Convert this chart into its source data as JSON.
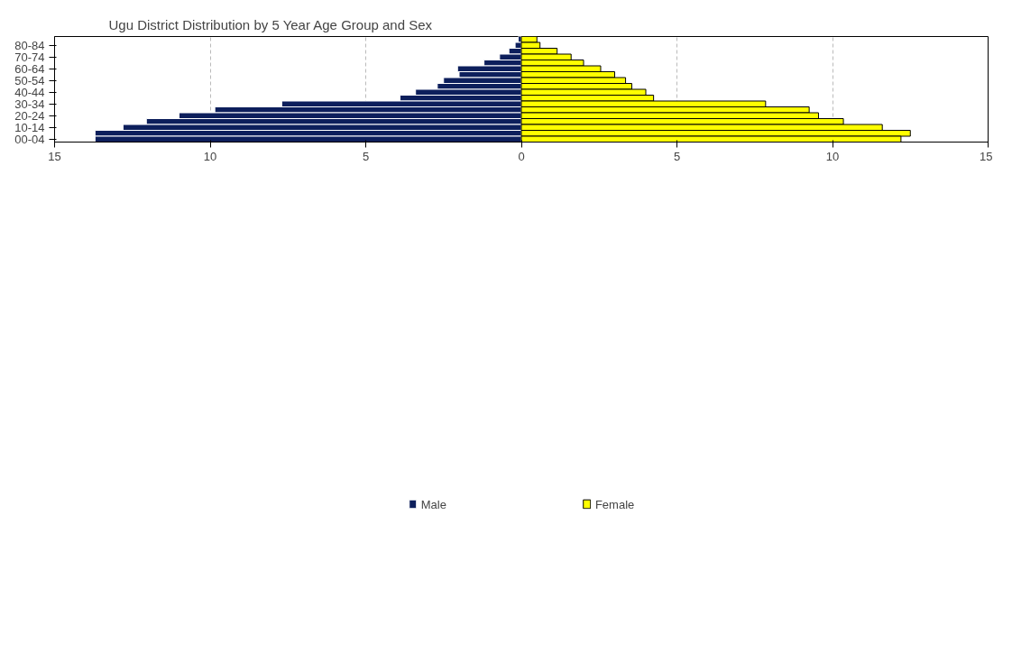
{
  "chart_data": {
    "type": "bar",
    "orientation": "horizontal",
    "title": "Ugu District Distribution by 5 Year Age Group and Sex",
    "categories": [
      null,
      "80-84",
      null,
      "70-74",
      null,
      "60-64",
      null,
      "50-54",
      null,
      "40-44",
      null,
      "30-34",
      null,
      "20-24",
      null,
      "10-14",
      null,
      "00-04"
    ],
    "series": [
      {
        "name": "Male",
        "color": "#0d1f5c",
        "values": [
          -0.1,
          -0.2,
          -0.4,
          -0.7,
          -1.2,
          -2.05,
          -2.0,
          -2.5,
          -2.7,
          -3.4,
          -3.9,
          -7.7,
          -9.85,
          -11.0,
          -12.05,
          -12.8,
          -13.7,
          -13.7
        ]
      },
      {
        "name": "Female",
        "color": "#ffff00",
        "values": [
          0.5,
          0.6,
          1.15,
          1.6,
          2.0,
          2.55,
          3.0,
          3.35,
          3.55,
          4.0,
          4.25,
          7.85,
          9.25,
          9.55,
          10.35,
          11.6,
          12.5,
          12.2
        ]
      }
    ],
    "xlim": [
      -15,
      15
    ],
    "xticks": [
      {
        "value": -15,
        "label": "15"
      },
      {
        "value": -10,
        "label": "10"
      },
      {
        "value": -5,
        "label": "5"
      },
      0,
      5,
      10,
      15
    ],
    "grid": "x",
    "legend": "bottom",
    "stacked": true
  }
}
